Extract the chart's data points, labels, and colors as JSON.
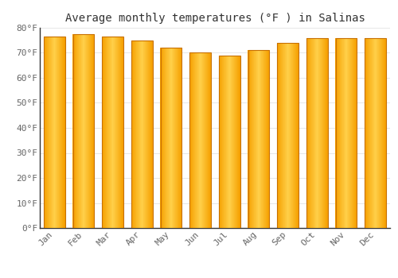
{
  "title": "Average monthly temperatures (°F ) in Salinas",
  "months": [
    "Jan",
    "Feb",
    "Mar",
    "Apr",
    "May",
    "Jun",
    "Jul",
    "Aug",
    "Sep",
    "Oct",
    "Nov",
    "Dec"
  ],
  "values": [
    76.5,
    77.5,
    76.5,
    75.0,
    72.0,
    70.0,
    69.0,
    71.0,
    74.0,
    76.0,
    76.0,
    76.0
  ],
  "bar_color_center": "#FFD04A",
  "bar_color_edge": "#F5A000",
  "bar_border_color": "#C87000",
  "background_color": "#FFFFFF",
  "grid_color": "#DDDDDD",
  "text_color": "#666666",
  "title_color": "#333333",
  "ylim": [
    0,
    80
  ],
  "ytick_step": 10,
  "title_fontsize": 10,
  "tick_fontsize": 8,
  "bar_width": 0.72
}
